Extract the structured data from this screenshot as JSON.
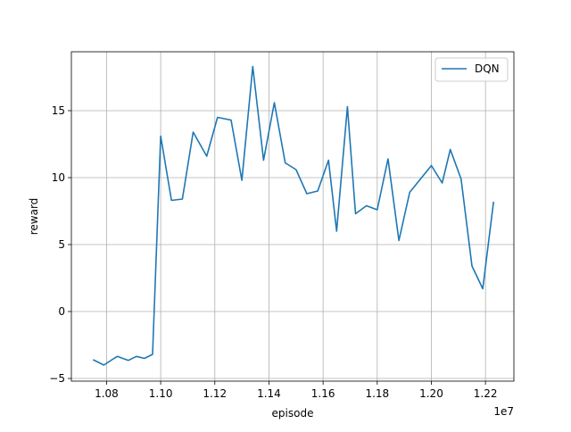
{
  "chart_data": {
    "type": "line",
    "xlabel": "episode",
    "ylabel": "reward",
    "x_offset_label": "1e7",
    "x_scale": 10000000,
    "xlim": [
      10670000,
      10305000
    ],
    "ylim": [
      -5.2,
      19.4
    ],
    "xticks": [
      10800000,
      11000000,
      11200000,
      11400000,
      11600000,
      11800000,
      12000000,
      12200000
    ],
    "xtick_labels": [
      "1.08",
      "1.10",
      "1.12",
      "1.14",
      "1.16",
      "1.18",
      "1.20",
      "1.22"
    ],
    "yticks": [
      -5,
      0,
      5,
      10,
      15
    ],
    "ytick_labels": [
      "−5",
      "0",
      "5",
      "10",
      "15"
    ],
    "grid": true,
    "legend": {
      "position": "top-right"
    },
    "series": [
      {
        "name": "DQN",
        "color": "#1f77b4",
        "x": [
          10750000,
          10790000,
          10820000,
          10840000,
          10880000,
          10910000,
          10940000,
          10970000,
          11000000,
          11040000,
          11080000,
          11120000,
          11170000,
          11210000,
          11260000,
          11300000,
          11340000,
          11380000,
          11420000,
          11460000,
          11500000,
          11540000,
          11580000,
          11620000,
          11650000,
          11690000,
          11720000,
          11760000,
          11800000,
          11840000,
          11880000,
          11920000,
          11960000,
          12000000,
          12040000,
          12070000,
          12110000,
          12150000,
          12190000,
          12230000
        ],
        "y": [
          -3.6,
          -4.0,
          -3.6,
          -3.35,
          -3.65,
          -3.35,
          -3.5,
          -3.2,
          13.1,
          8.3,
          8.4,
          13.4,
          11.6,
          14.5,
          14.3,
          9.8,
          18.3,
          11.3,
          15.6,
          11.1,
          10.6,
          8.8,
          9.0,
          11.3,
          6.0,
          15.3,
          7.3,
          7.9,
          7.6,
          11.4,
          5.3,
          8.9,
          9.9,
          10.9,
          9.6,
          12.1,
          9.9,
          3.4,
          1.7,
          8.2
        ]
      }
    ]
  }
}
